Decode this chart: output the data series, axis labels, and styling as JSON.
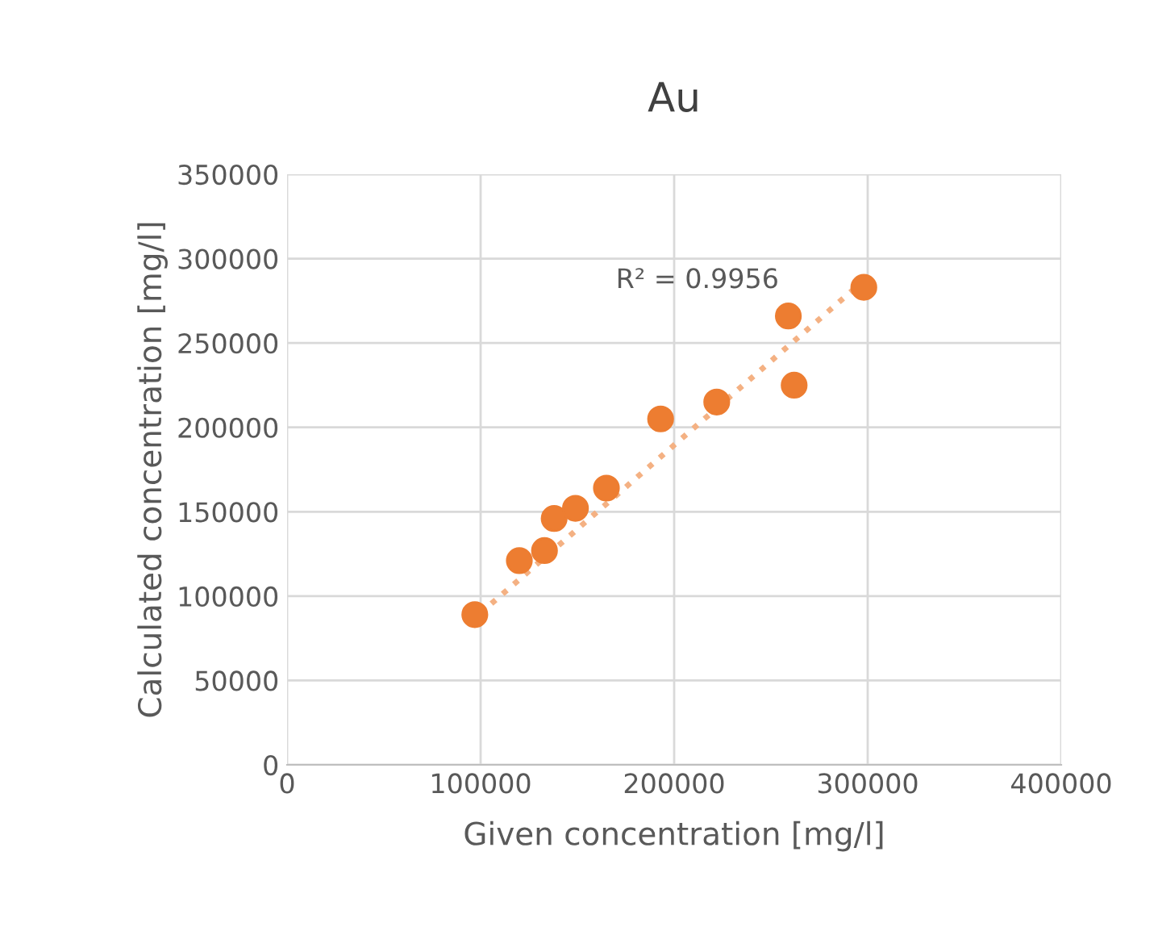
{
  "chart_data": {
    "type": "scatter",
    "title": "Au",
    "xlabel": "Given concentration [mg/l]",
    "ylabel": "Calculated concentration [mg/l]",
    "xlim": [
      0,
      400000
    ],
    "xticks": [
      0,
      100000,
      200000,
      300000,
      400000
    ],
    "ylim": [
      0,
      350000
    ],
    "yticks": [
      0,
      50000,
      100000,
      150000,
      200000,
      250000,
      300000,
      350000
    ],
    "grid": true,
    "marker": "circle",
    "series": [
      {
        "color": "#ed7d31",
        "x": [
          97000,
          120000,
          133000,
          138000,
          149000,
          165000,
          193000,
          222000,
          259000,
          262000,
          298000
        ],
        "values": [
          89000,
          121000,
          127000,
          146000,
          152000,
          164000,
          205000,
          215000,
          266000,
          225000,
          283000
        ]
      },
      {
        "type": "line",
        "color": "#f4b183",
        "line_style": "dotted",
        "marker": "none",
        "x": [
          94000,
          301000
        ],
        "values": [
          84000,
          290000
        ]
      }
    ],
    "annotations": [
      "R² = 0.9956"
    ]
  }
}
